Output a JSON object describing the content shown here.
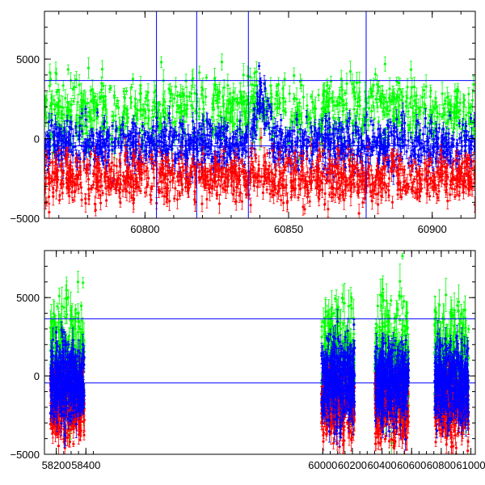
{
  "chart_data": [
    {
      "type": "scatter",
      "panel": "top",
      "xlim": [
        60765,
        60915
      ],
      "ylim": [
        -5000,
        8000
      ],
      "x_ticks": [
        60800,
        60850,
        60900
      ],
      "y_ticks": [
        -5000,
        0,
        5000
      ],
      "x_tick_labels": [
        "60800",
        "60850",
        "60900"
      ],
      "y_tick_labels": [
        "−5000",
        "0",
        "5000"
      ],
      "hlines": [
        3650,
        -450
      ],
      "vlines": [
        60804,
        60818,
        60836,
        60877
      ],
      "grid": false,
      "error_bars": true,
      "series": [
        {
          "color": "#00ff00",
          "center": 1800,
          "spread": 1700,
          "n": 900
        },
        {
          "color": "#0000ff",
          "center": -350,
          "spread": 1300,
          "n": 1200
        },
        {
          "color": "#ff0000",
          "center": -2400,
          "spread": 1300,
          "n": 1100
        }
      ],
      "features": [
        {
          "x_range": [
            60836,
            60845
          ],
          "y_shift": 3000,
          "note": ""
        }
      ]
    },
    {
      "type": "scatter",
      "panel": "bottom",
      "xlim": [
        58120,
        61030
      ],
      "ylim": [
        -5000,
        8000
      ],
      "x_ticks": [
        58200,
        58400,
        60000,
        60200,
        60400,
        60600,
        60800,
        61000
      ],
      "x_tick_labels": [
        "58200",
        "58400",
        "60000",
        "60200",
        "60400",
        "60600",
        "60800",
        "61000"
      ],
      "y_ticks": [
        -5000,
        0,
        5000
      ],
      "y_tick_labels": [
        "−5000",
        "0",
        "5000"
      ],
      "hlines": [
        3650,
        -450
      ],
      "grid": false,
      "error_bars": true,
      "segments": [
        {
          "x_range": [
            58160,
            58390
          ],
          "tick_range": [
            58160,
            58480
          ]
        },
        {
          "x_range": [
            59990,
            60215
          ],
          "tick_range": [
            59980,
            60260
          ]
        },
        {
          "x_range": [
            60350,
            60580
          ],
          "tick_range": [
            60300,
            60650
          ]
        },
        {
          "x_range": [
            60755,
            60985
          ],
          "tick_range": [
            60700,
            61040
          ]
        }
      ],
      "series": [
        {
          "color": "#00ff00",
          "center": 1200,
          "spread": 3200,
          "n": 1000
        },
        {
          "color": "#ff0000",
          "center": -1800,
          "spread": 1900,
          "n": 1200
        },
        {
          "color": "#0000ff",
          "center": -300,
          "spread": 2100,
          "n": 1600
        }
      ]
    }
  ]
}
